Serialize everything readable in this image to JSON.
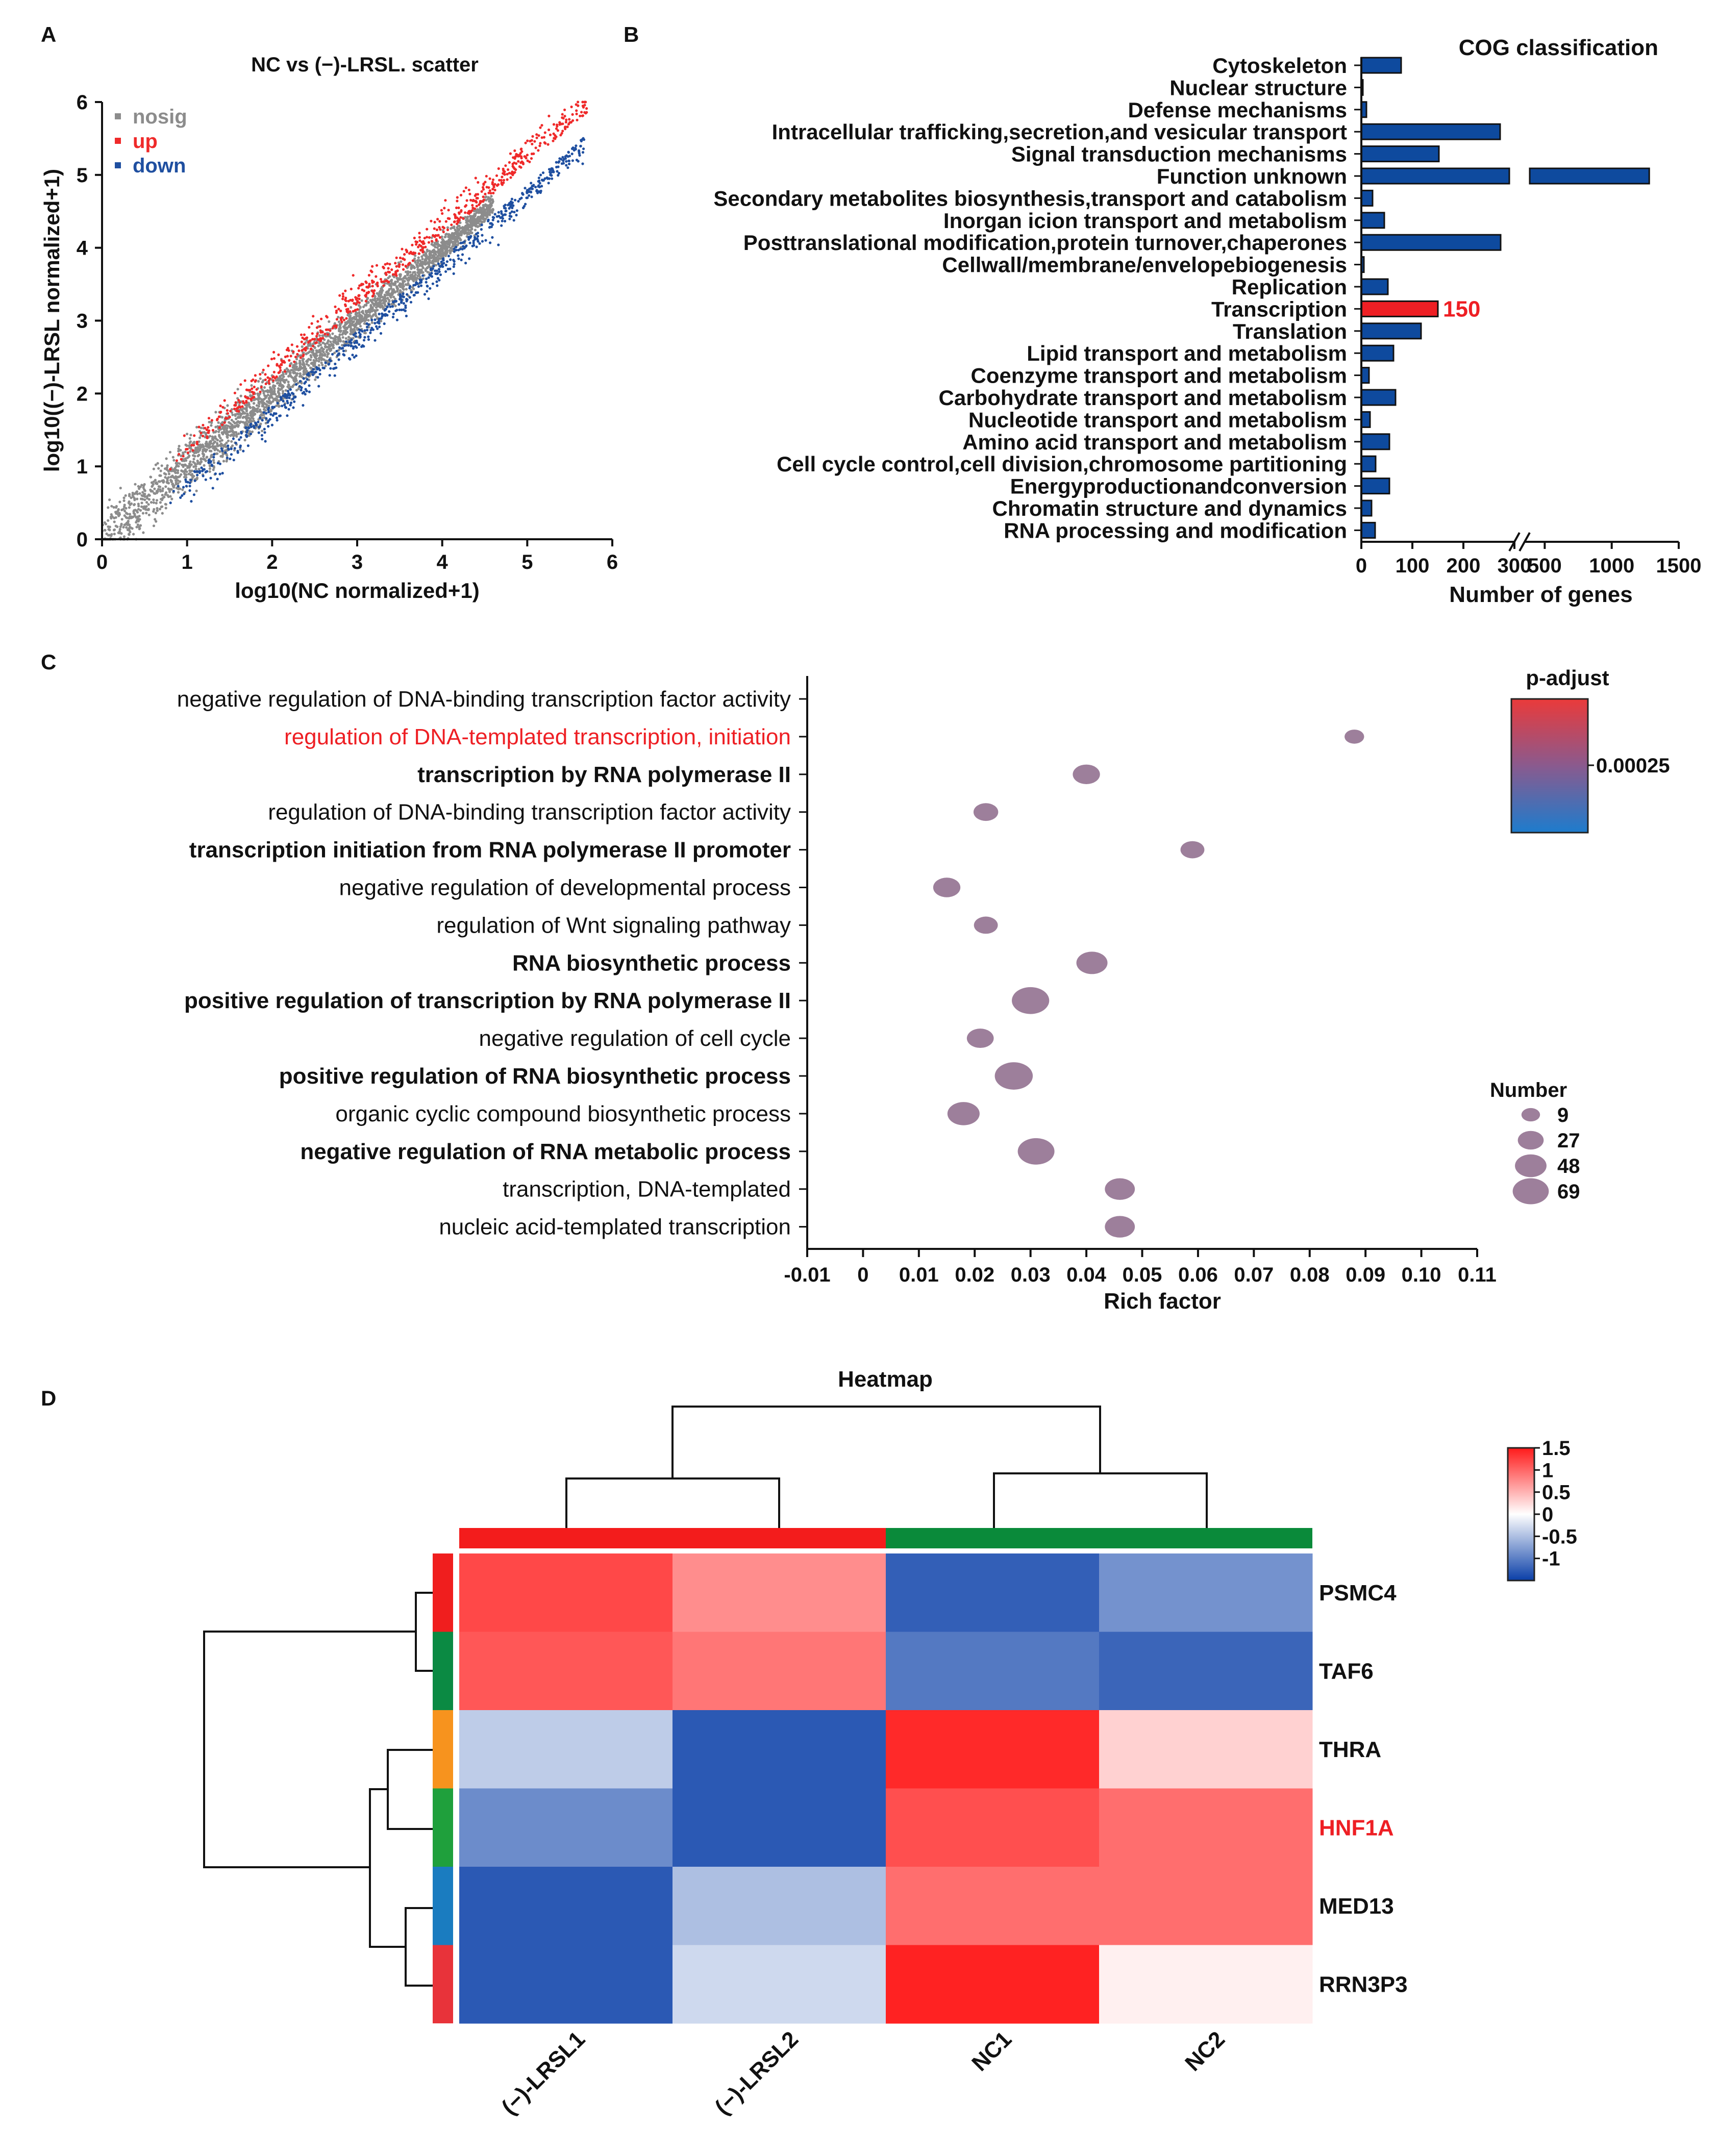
{
  "panel_labels": {
    "a": "A",
    "b": "B",
    "c": "C",
    "d": "D"
  },
  "chart_data": [
    {
      "type": "scatter",
      "title": "NC vs (−)-LRSL. scatter",
      "xlabel": "log10(NC normalized+1)",
      "ylabel": "log10((−)-LRSL normalized+1)",
      "xlim": [
        0,
        6
      ],
      "ylim": [
        0,
        6
      ],
      "xticks": [
        "0",
        "1",
        "2",
        "3",
        "4",
        "5",
        "6"
      ],
      "yticks": [
        "0",
        "1",
        "2",
        "3",
        "4",
        "5",
        "6"
      ],
      "legend": [
        {
          "name": "nosig",
          "color": "#8c8c8c"
        },
        {
          "name": "up",
          "color": "#ef2a2a"
        },
        {
          "name": "down",
          "color": "#1f4fa0"
        }
      ],
      "point_generation": {
        "nosig_count": 2600,
        "up_count": 650,
        "down_count": 650,
        "up_offset": 0.12,
        "down_offset": -0.12,
        "x_max": 5.7
      }
    },
    {
      "type": "bar",
      "orientation": "horizontal",
      "title": "COG classification",
      "xlabel": "Number of genes",
      "xticks": [
        "0",
        "100",
        "200",
        "300",
        "500",
        "1000",
        "1500"
      ],
      "axis_break": {
        "break_from": 300,
        "resume_at": 350
      },
      "highlight": {
        "category": "Transcription",
        "value_label": "150",
        "color": "#ee1f24"
      },
      "bar_color": "#0e4a9e",
      "categories": [
        "Cytoskeleton",
        "Nuclear structure",
        "Defense mechanisms",
        "Intracellular trafficking,secretion,and vesicular transport",
        "Signal transduction mechanisms",
        "Function unknown",
        "Secondary metabolites biosynthesis,transport and catabolism",
        "Inorgan icion transport and metabolism",
        "Posttranslational modification,protein turnover,chaperones",
        "Cellwall/membrane/envelopebiogenesis",
        "Replication",
        "Transcription",
        "Translation",
        "Lipid transport and metabolism",
        "Coenzyme transport and metabolism",
        "Carbohydrate transport and metabolism",
        "Nucleotide transport and metabolism",
        "Amino acid transport and metabolism",
        "Cell cycle control,cell division,chromosome partitioning",
        "Energyproductionandconversion",
        "Chromatin structure and dynamics",
        "RNA processing and modification"
      ],
      "values": [
        78,
        1,
        10,
        272,
        152,
        1280,
        22,
        45,
        273,
        5,
        52,
        150,
        117,
        63,
        15,
        67,
        17,
        55,
        28,
        55,
        20,
        27
      ]
    },
    {
      "type": "scatter",
      "subtype": "bubble",
      "xlabel": "Rich factor",
      "xlim": [
        -0.01,
        0.11
      ],
      "xticks": [
        "-0.01",
        "0",
        "0.01",
        "0.02",
        "0.03",
        "0.04",
        "0.05",
        "0.06",
        "0.07",
        "0.08",
        "0.09",
        "0.10",
        "0.11"
      ],
      "highlight_term": "regulation of DNA-templated transcription, initiation",
      "highlight_color": "#ee1f24",
      "terms": [
        "negative regulation of DNA-binding transcription factor activity",
        "regulation of DNA-templated transcription, initiation",
        "transcription by RNA polymerase II",
        "regulation of DNA-binding transcription factor activity",
        "transcription initiation from RNA polymerase II promoter",
        "negative regulation of developmental process",
        "regulation of Wnt signaling pathway",
        "RNA biosynthetic process",
        "positive regulation of transcription by RNA polymerase II",
        "negative regulation of cell cycle",
        "positive regulation of RNA biosynthetic process",
        "organic cyclic compound biosynthetic process",
        "negative regulation of RNA metabolic process",
        "transcription, DNA-templated",
        "nucleic acid-templated transcription"
      ],
      "bold_terms": [
        2,
        4,
        7,
        8,
        10,
        12
      ],
      "points": [
        {
          "term_index": 1,
          "rich": 0.088,
          "number": 9
        },
        {
          "term_index": 2,
          "rich": 0.04,
          "number": 27
        },
        {
          "term_index": 3,
          "rich": 0.022,
          "number": 20
        },
        {
          "term_index": 4,
          "rich": 0.059,
          "number": 18
        },
        {
          "term_index": 5,
          "rich": 0.015,
          "number": 27
        },
        {
          "term_index": 6,
          "rich": 0.022,
          "number": 18
        },
        {
          "term_index": 7,
          "rich": 0.041,
          "number": 40
        },
        {
          "term_index": 8,
          "rich": 0.03,
          "number": 66
        },
        {
          "term_index": 9,
          "rich": 0.021,
          "number": 26
        },
        {
          "term_index": 10,
          "rich": 0.027,
          "number": 69
        },
        {
          "term_index": 11,
          "rich": 0.018,
          "number": 44
        },
        {
          "term_index": 12,
          "rich": 0.031,
          "number": 63
        },
        {
          "term_index": 13,
          "rich": 0.046,
          "number": 36
        },
        {
          "term_index": 14,
          "rich": 0.046,
          "number": 36
        }
      ],
      "point_color": "#9d7f9b",
      "colorbar": {
        "title": "p-adjust",
        "tick": "0.00025",
        "top_color": "#e8393a",
        "bottom_color": "#1f77c9"
      },
      "size_legend": {
        "title": "Number",
        "values": [
          9,
          27,
          48,
          69
        ],
        "labels": [
          "9",
          "27",
          "48",
          "69"
        ]
      }
    },
    {
      "type": "heatmap",
      "title": "Heatmap",
      "columns": [
        "(−)-LRSL1",
        "(−)-LRSL2",
        "NC1",
        "NC2"
      ],
      "column_groups": [
        "#f31c1c",
        "#f31c1c",
        "#0a8a3a",
        "#0a8a3a"
      ],
      "rows": [
        "PSMC4",
        "TAF6",
        "THRA",
        "HNF1A",
        "MED13",
        "RRN3P3"
      ],
      "row_colors": [
        "#f01e1e",
        "#0b8a43",
        "#f7931e",
        "#1fa03c",
        "#1a7cc0",
        "#e8333a"
      ],
      "highlight_row": "HNF1A",
      "highlight_color": "#ee1f24",
      "values": [
        [
          1.2,
          0.75,
          -1.25,
          -0.85
        ],
        [
          1.1,
          0.9,
          -1.05,
          -1.2
        ],
        [
          -0.4,
          -1.3,
          1.4,
          0.3
        ],
        [
          -0.9,
          -1.3,
          1.15,
          0.95
        ],
        [
          -1.3,
          -0.5,
          0.95,
          0.95
        ],
        [
          -1.3,
          -0.3,
          1.45,
          0.1
        ]
      ],
      "colorbar": {
        "range": [
          -1.5,
          1.5
        ],
        "ticks": [
          "1.5",
          "1",
          "0.5",
          "0",
          "-0.5",
          "-1"
        ]
      }
    }
  ]
}
